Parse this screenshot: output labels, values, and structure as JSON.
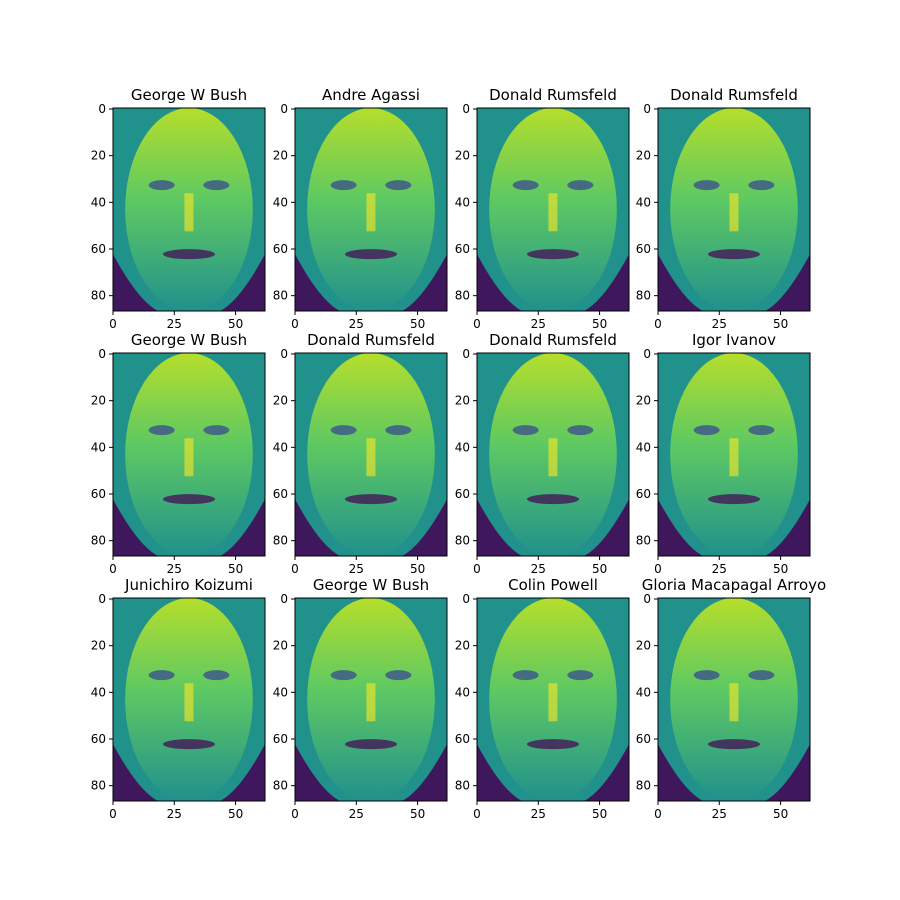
{
  "figure": {
    "panels": [
      {
        "title": "George W Bush"
      },
      {
        "title": "Andre Agassi"
      },
      {
        "title": "Donald Rumsfeld"
      },
      {
        "title": "Donald Rumsfeld"
      },
      {
        "title": "George W Bush"
      },
      {
        "title": "Donald Rumsfeld"
      },
      {
        "title": "Donald Rumsfeld"
      },
      {
        "title": "Igor Ivanov"
      },
      {
        "title": "Junichiro Koizumi"
      },
      {
        "title": "George W Bush"
      },
      {
        "title": "Colin Powell"
      },
      {
        "title": "Gloria Macapagal Arroyo"
      }
    ],
    "x_ticks": [
      "0",
      "25",
      "50"
    ],
    "y_ticks": [
      "0",
      "20",
      "40",
      "60",
      "80"
    ],
    "colormap": [
      "#440154",
      "#3b528b",
      "#21918c",
      "#5ec962",
      "#fde725"
    ]
  }
}
